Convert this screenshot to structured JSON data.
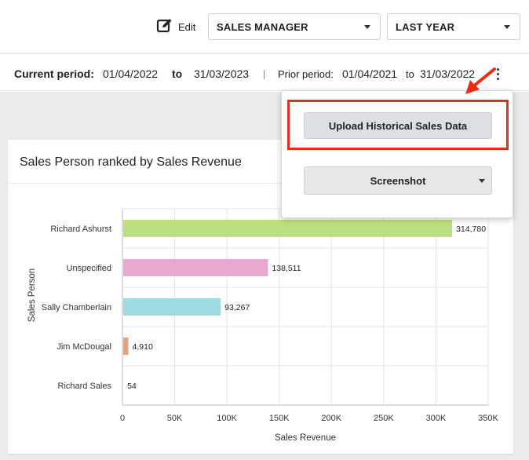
{
  "toolbar": {
    "edit_label": "Edit",
    "role_select": {
      "selected": "SALES MANAGER"
    },
    "period_select": {
      "selected": "LAST YEAR"
    }
  },
  "period_bar": {
    "current_label": "Current period:",
    "current_from": "01/04/2022",
    "current_to_word": "to",
    "current_to": "31/03/2023",
    "separator": "|",
    "prior_label": "Prior period:",
    "prior_from": "01/04/2021",
    "prior_to_word": "to",
    "prior_to": "31/03/2022"
  },
  "popup": {
    "upload_label": "Upload Historical Sales Data",
    "screenshot_label": "Screenshot"
  },
  "annotation": {
    "color": "#ee2b14"
  },
  "card": {
    "title": "Sales Person ranked by Sales Revenue"
  },
  "chart_data": {
    "type": "bar",
    "orientation": "horizontal",
    "title": "Sales Person ranked by Sales Revenue",
    "xlabel": "Sales Revenue",
    "ylabel": "Sales Person",
    "categories": [
      "Richard Ashurst",
      "Unspecified",
      "Sally Chamberlain",
      "Jim McDougal",
      "Richard Sales"
    ],
    "values": [
      314780,
      138511,
      93267,
      4910,
      54
    ],
    "value_labels": [
      "314,780",
      "138,511",
      "93,267",
      "4,910",
      "54"
    ],
    "colors": [
      "#bcdf80",
      "#e8a8d0",
      "#9cdbe2",
      "#e8a280",
      "#c9c9c9"
    ],
    "xlim": [
      0,
      350000
    ],
    "xticks": [
      0,
      50000,
      100000,
      150000,
      200000,
      250000,
      300000,
      350000
    ],
    "xtick_labels": [
      "0",
      "50K",
      "100K",
      "150K",
      "200K",
      "250K",
      "300K",
      "350K"
    ],
    "grid": true
  }
}
